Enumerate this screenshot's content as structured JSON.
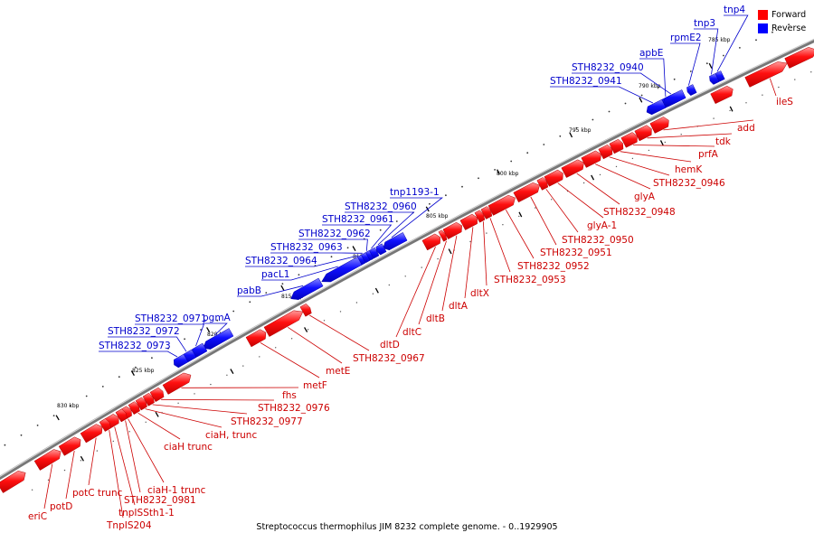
{
  "caption": "Streptococcus thermophilus JIM 8232 complete genome. - 0..1929905",
  "legend": {
    "forward": {
      "label": "Forward",
      "color": "#ff0000"
    },
    "reverse": {
      "label": "Reverse",
      "color": "#0000ff"
    }
  },
  "ticks": [
    "785 kbp",
    "790 kbp",
    "795 kbp",
    "800 kbp",
    "805 kbp",
    "810 kbp",
    "815 kbp",
    "820 kbp",
    "825 kbp",
    "830 kbp"
  ],
  "reverse_genes": [
    "tnp4",
    "tnp3",
    "rpmE2",
    "apbE",
    "STH8232_0940",
    "STH8232_0941",
    "tnp1193-1",
    "STH8232_0960",
    "STH8232_0961",
    "STH8232_0962",
    "STH8232_0963",
    "STH8232_0964",
    "pacL1",
    "pabB",
    "pgmA",
    "STH8232_0971",
    "STH8232_0972",
    "STH8232_0973"
  ],
  "forward_genes": [
    "ileS",
    "add",
    "tdk",
    "prfA",
    "hemK",
    "STH8232_0946",
    "glyA",
    "STH8232_0948",
    "glyA-1",
    "STH8232_0950",
    "STH8232_0951",
    "STH8232_0952",
    "STH8232_0953",
    "dltX",
    "dltA",
    "dltB",
    "dltC",
    "dltD",
    "STH8232_0967",
    "metE",
    "metF",
    "fhs",
    "STH8232_0976",
    "STH8232_0977",
    "ciaH, trunc",
    "ciaH trunc",
    "ciaH-1 trunc",
    "STH8232_0981",
    "tnpISSth1-1",
    "TnpIS204",
    "potC trunc",
    "potD",
    "eriC"
  ]
}
